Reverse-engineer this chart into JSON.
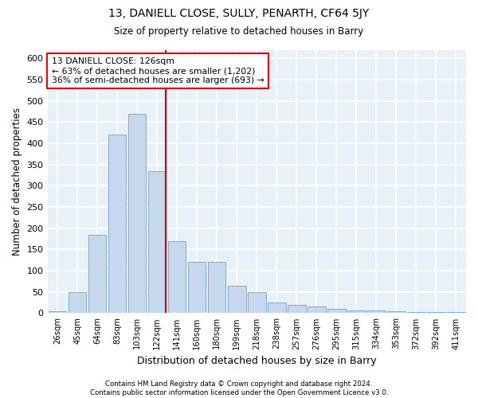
{
  "title": "13, DANIELL CLOSE, SULLY, PENARTH, CF64 5JY",
  "subtitle": "Size of property relative to detached houses in Barry",
  "xlabel": "Distribution of detached houses by size in Barry",
  "ylabel": "Number of detached properties",
  "footnote": "Contains HM Land Registry data © Crown copyright and database right 2024.\nContains public sector information licensed under the Open Government Licence v3.0.",
  "categories": [
    "26sqm",
    "45sqm",
    "64sqm",
    "83sqm",
    "103sqm",
    "122sqm",
    "141sqm",
    "160sqm",
    "180sqm",
    "199sqm",
    "218sqm",
    "238sqm",
    "257sqm",
    "276sqm",
    "295sqm",
    "315sqm",
    "334sqm",
    "353sqm",
    "372sqm",
    "392sqm",
    "411sqm"
  ],
  "values": [
    5,
    50,
    185,
    420,
    470,
    335,
    170,
    120,
    120,
    65,
    50,
    25,
    20,
    15,
    10,
    7,
    6,
    5,
    2,
    2,
    2
  ],
  "bar_color": "#c5d8ee",
  "bar_edge_color": "#7bafd4",
  "background_color": "#e8f0f8",
  "grid_color": "#ffffff",
  "annotation_text": "13 DANIELL CLOSE: 126sqm\n← 63% of detached houses are smaller (1,202)\n36% of semi-detached houses are larger (693) →",
  "annotation_box_color": "#ff0000",
  "vline_x_index": 5,
  "vline_color": "#cc0000",
  "ylim": [
    0,
    620
  ],
  "yticks": [
    0,
    50,
    100,
    150,
    200,
    250,
    300,
    350,
    400,
    450,
    500,
    550,
    600
  ]
}
